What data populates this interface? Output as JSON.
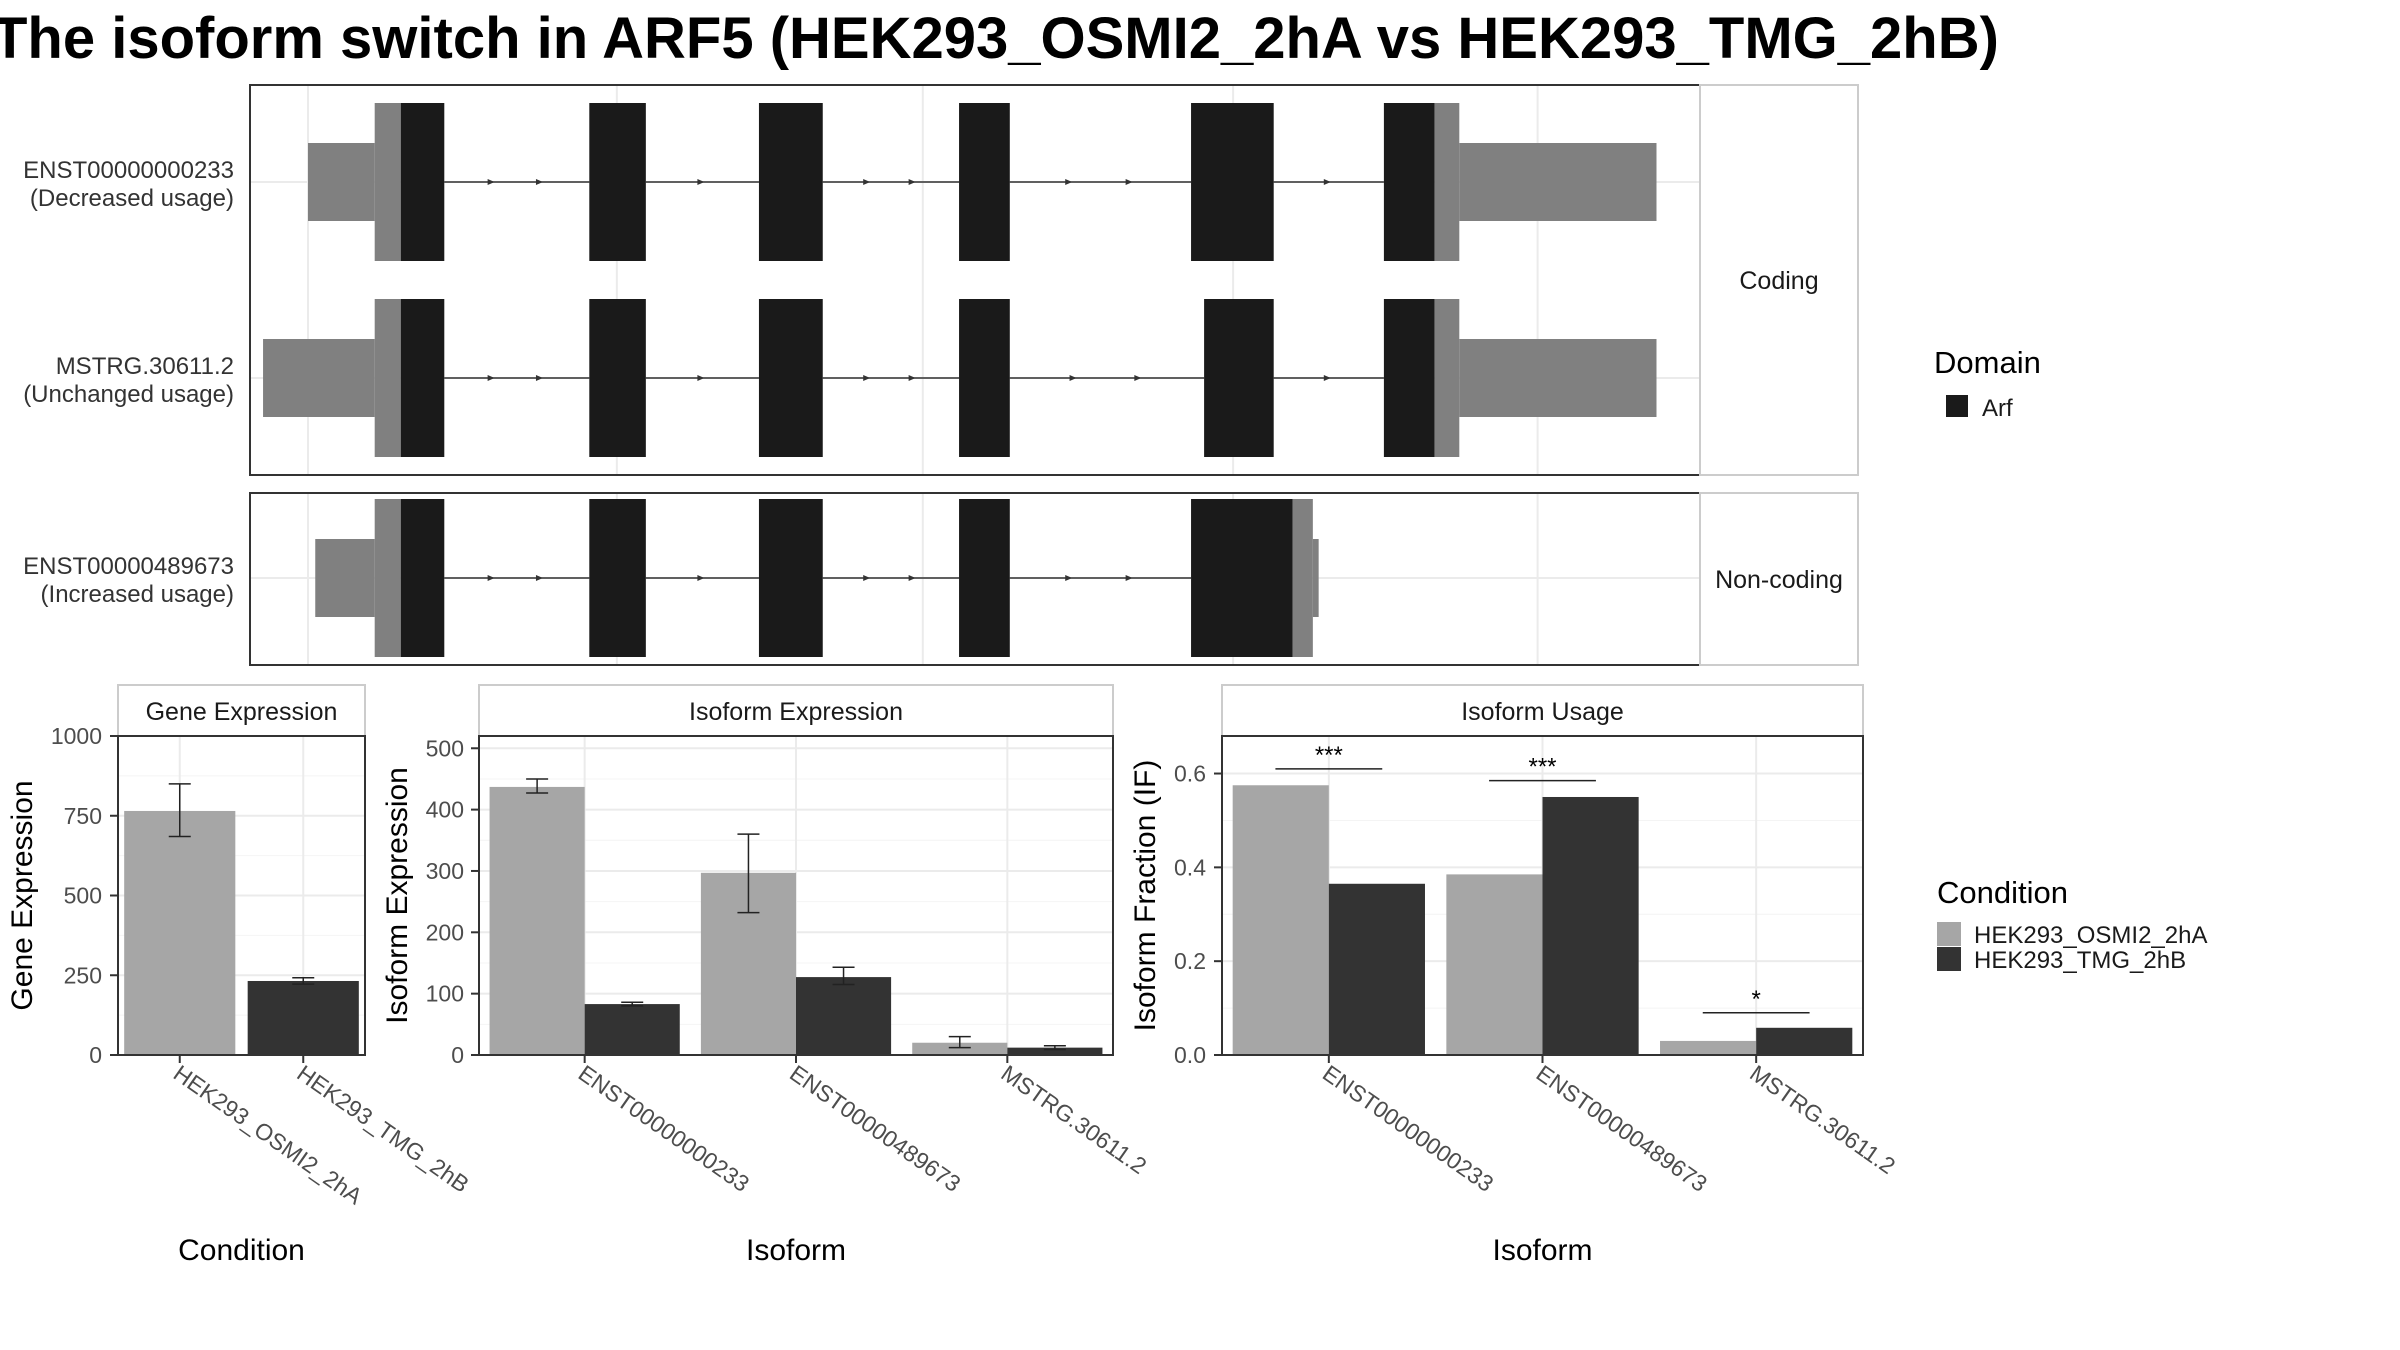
{
  "title": "The isoform switch in ARF5 (HEK293_OSMI2_2hA vs HEK293_TMG_2hB)",
  "colors": {
    "utr": "#808080",
    "domain": "#1a1a1a",
    "cond1": "#a6a6a6",
    "cond2": "#333333"
  },
  "structure": {
    "panels": [
      "Coding",
      "Non-coding"
    ],
    "transcripts": [
      {
        "id": "ENST00000000233",
        "usage": "(Decreased usage)",
        "panel": "Coding",
        "segments": [
          {
            "kind": "utr",
            "start": 0.04,
            "end": 0.086
          },
          {
            "kind": "utr-tall",
            "start": 0.086,
            "end": 0.104
          },
          {
            "kind": "domain",
            "start": 0.104,
            "end": 0.134
          },
          {
            "kind": "domain",
            "start": 0.234,
            "end": 0.273
          },
          {
            "kind": "domain",
            "start": 0.351,
            "end": 0.395
          },
          {
            "kind": "domain",
            "start": 0.489,
            "end": 0.524
          },
          {
            "kind": "domain",
            "start": 0.649,
            "end": 0.706
          },
          {
            "kind": "domain",
            "start": 0.782,
            "end": 0.817
          },
          {
            "kind": "utr-tall",
            "start": 0.817,
            "end": 0.834
          },
          {
            "kind": "utr",
            "start": 0.834,
            "end": 0.97
          }
        ]
      },
      {
        "id": "MSTRG.30611.2",
        "usage": "(Unchanged usage)",
        "panel": "Coding",
        "segments": [
          {
            "kind": "utr",
            "start": 0.009,
            "end": 0.086
          },
          {
            "kind": "utr-tall",
            "start": 0.086,
            "end": 0.104
          },
          {
            "kind": "domain",
            "start": 0.104,
            "end": 0.134
          },
          {
            "kind": "domain",
            "start": 0.234,
            "end": 0.273
          },
          {
            "kind": "domain",
            "start": 0.351,
            "end": 0.395
          },
          {
            "kind": "domain",
            "start": 0.489,
            "end": 0.524
          },
          {
            "kind": "domain",
            "start": 0.658,
            "end": 0.706
          },
          {
            "kind": "domain",
            "start": 0.782,
            "end": 0.817
          },
          {
            "kind": "utr-tall",
            "start": 0.817,
            "end": 0.834
          },
          {
            "kind": "utr",
            "start": 0.834,
            "end": 0.97
          }
        ]
      },
      {
        "id": "ENST00000489673",
        "usage": "(Increased usage)",
        "panel": "Non-coding",
        "segments": [
          {
            "kind": "utr",
            "start": 0.045,
            "end": 0.086
          },
          {
            "kind": "utr-tall",
            "start": 0.086,
            "end": 0.104
          },
          {
            "kind": "domain",
            "start": 0.104,
            "end": 0.134
          },
          {
            "kind": "domain",
            "start": 0.234,
            "end": 0.273
          },
          {
            "kind": "domain",
            "start": 0.351,
            "end": 0.395
          },
          {
            "kind": "domain",
            "start": 0.489,
            "end": 0.524
          },
          {
            "kind": "domain",
            "start": 0.649,
            "end": 0.719
          },
          {
            "kind": "utr-tall",
            "start": 0.719,
            "end": 0.733
          },
          {
            "kind": "utr",
            "start": 0.733,
            "end": 0.737
          }
        ]
      }
    ]
  },
  "legends": {
    "domain": {
      "title": "Domain",
      "items": [
        {
          "label": "Arf",
          "color": "#1a1a1a"
        }
      ]
    },
    "condition": {
      "title": "Condition",
      "items": [
        {
          "label": "HEK293_OSMI2_2hA",
          "color": "#a6a6a6"
        },
        {
          "label": "HEK293_TMG_2hB",
          "color": "#333333"
        }
      ]
    }
  },
  "chart_data": [
    {
      "type": "bar",
      "title": "Gene Expression",
      "xlabel": "Condition",
      "ylabel": "Gene Expression",
      "ylim": [
        0,
        1000
      ],
      "yticks": [
        0,
        250,
        500,
        750,
        1000
      ],
      "categories": [
        "HEK293_OSMI2_2hA",
        "HEK293_TMG_2hB"
      ],
      "series": [
        {
          "name": "HEK293_OSMI2_2hA",
          "values": [
            765,
            null
          ],
          "errors": [
            [
              685,
              850
            ],
            null
          ]
        },
        {
          "name": "HEK293_TMG_2hB",
          "values": [
            null,
            232
          ],
          "errors": [
            null,
            [
              222,
              242
            ]
          ]
        }
      ]
    },
    {
      "type": "bar",
      "title": "Isoform Expression",
      "xlabel": "Isoform",
      "ylabel": "Isoform Expression",
      "ylim": [
        0,
        520
      ],
      "yticks": [
        0,
        100,
        200,
        300,
        400,
        500
      ],
      "categories": [
        "ENST00000000233",
        "ENST00000489673",
        "MSTRG.30611.2"
      ],
      "series": [
        {
          "name": "HEK293_OSMI2_2hA",
          "values": [
            437,
            297,
            20
          ],
          "errors": [
            [
              427,
              450
            ],
            [
              232,
              360
            ],
            [
              12,
              30
            ]
          ]
        },
        {
          "name": "HEK293_TMG_2hB",
          "values": [
            83,
            127,
            12
          ],
          "errors": [
            [
              80,
              86
            ],
            [
              115,
              143
            ],
            [
              9,
              15
            ]
          ]
        }
      ]
    },
    {
      "type": "bar",
      "title": "Isoform Usage",
      "xlabel": "Isoform",
      "ylabel": "Isoform Fraction (IF)",
      "ylim": [
        0,
        0.68
      ],
      "yticks": [
        "0.0",
        "0.2",
        "0.4",
        "0.6"
      ],
      "categories": [
        "ENST00000000233",
        "ENST00000489673",
        "MSTRG.30611.2"
      ],
      "series": [
        {
          "name": "HEK293_OSMI2_2hA",
          "values": [
            0.575,
            0.385,
            0.03
          ]
        },
        {
          "name": "HEK293_TMG_2hB",
          "values": [
            0.365,
            0.55,
            0.058
          ]
        }
      ],
      "significance": [
        {
          "category": "ENST00000000233",
          "label": "***",
          "y": 0.61
        },
        {
          "category": "ENST00000489673",
          "label": "***",
          "y": 0.585
        },
        {
          "category": "MSTRG.30611.2",
          "label": "*",
          "y": 0.09
        }
      ]
    }
  ]
}
